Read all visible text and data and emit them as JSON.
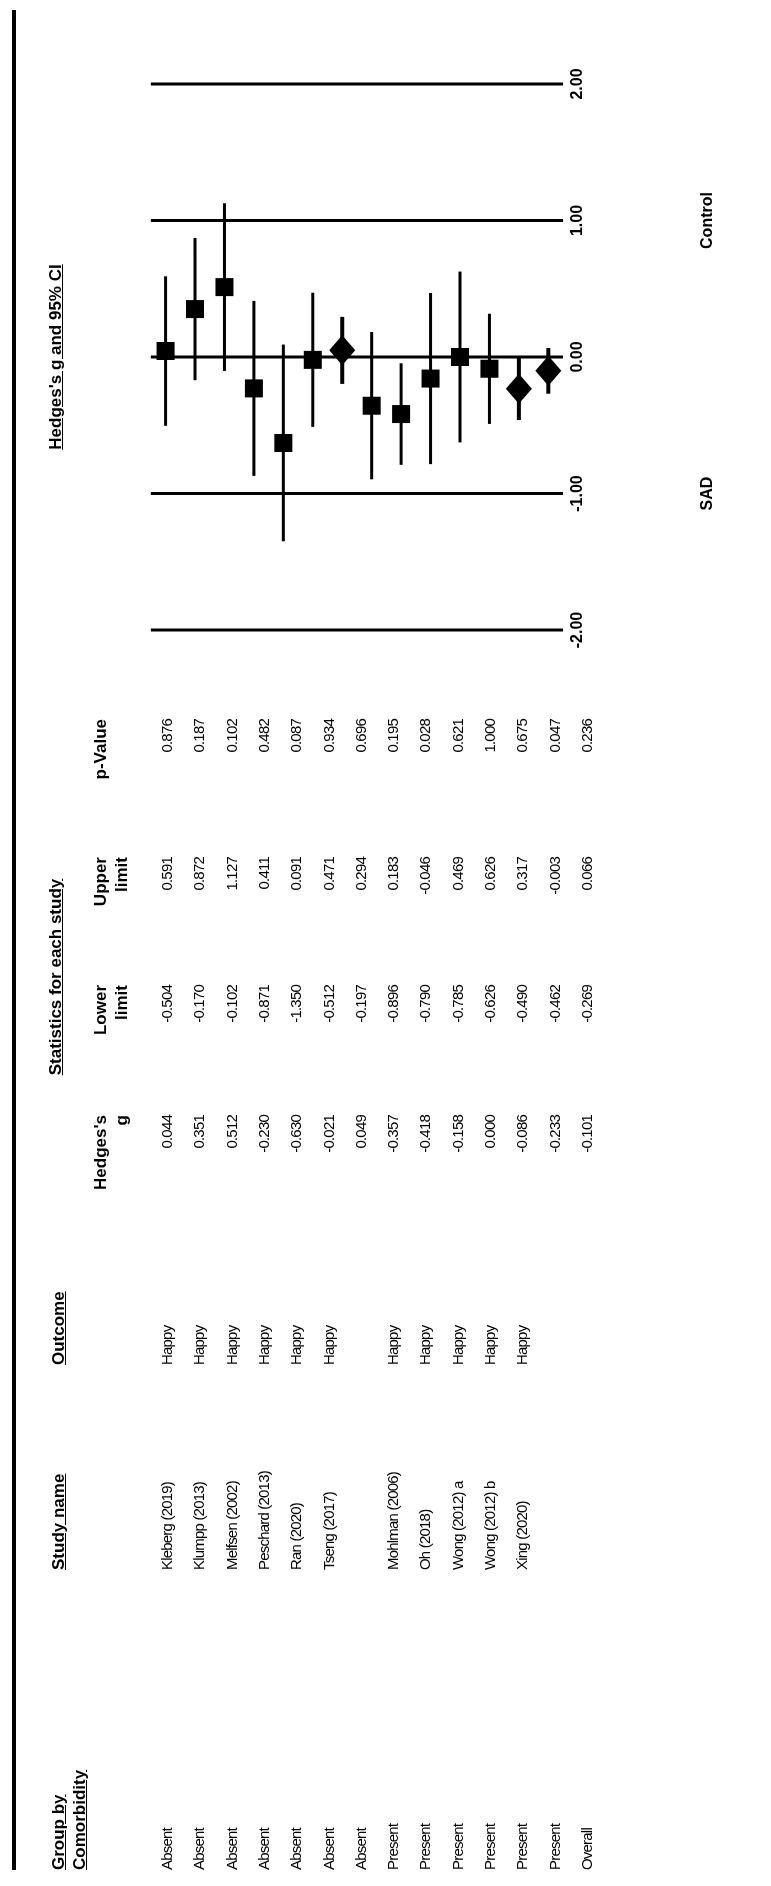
{
  "chart_data": [
    {
      "type": "scatter",
      "title": "Hedges's g and 95% CI",
      "categories": [
        null,
        null,
        null,
        null,
        null,
        null,
        null,
        null,
        null,
        null,
        null,
        null,
        null,
        null
      ],
      "series": [
        {
          "color": "#000000",
          "marker": "square",
          "values": [
            0.044,
            0.351,
            0.512,
            -0.23,
            -0.63,
            -0.021,
            null,
            -0.357,
            -0.418,
            -0.158,
            0.0,
            -0.086,
            null,
            null
          ],
          "errors": [
            [
              -0.504,
              0.591
            ],
            [
              -0.17,
              0.872
            ],
            [
              -0.102,
              1.127
            ],
            [
              -0.871,
              0.411
            ],
            [
              -1.35,
              0.091
            ],
            [
              -0.512,
              0.471
            ],
            null,
            [
              -0.896,
              0.183
            ],
            [
              -0.79,
              -0.046
            ],
            [
              -0.785,
              0.469
            ],
            [
              -0.626,
              0.626
            ],
            [
              -0.49,
              0.317
            ],
            null,
            null
          ]
        },
        {
          "color": "#000000",
          "marker": "diamond",
          "values": [
            null,
            null,
            null,
            null,
            null,
            null,
            0.049,
            null,
            null,
            null,
            null,
            null,
            -0.233,
            -0.101
          ],
          "errors": [
            null,
            null,
            null,
            null,
            null,
            null,
            [
              -0.197,
              0.294
            ],
            null,
            null,
            null,
            null,
            null,
            [
              -0.462,
              -0.003
            ],
            [
              -0.269,
              0.066
            ]
          ]
        }
      ],
      "ylim": [
        -2,
        2
      ],
      "yticks": [
        {
          "value": -2,
          "label": "-2.00"
        },
        {
          "value": -1,
          "label": "-1.00"
        },
        {
          "value": 0,
          "label": "0.00"
        },
        {
          "value": 1,
          "label": "1.00"
        },
        {
          "value": 2,
          "label": "2.00"
        }
      ],
      "grid": "y",
      "legend": false,
      "annotations": [
        "SAD",
        "Control"
      ]
    },
    {
      "type": "other",
      "title": "Statistics for each study",
      "categories": [
        "Group by\nComorbidity",
        "Study name",
        "Outcome",
        "Hedges's\ng",
        "Lower\nlimit",
        "Upper\nlimit",
        "p-Value"
      ],
      "cell_labels": [
        [
          "Absent",
          "Kleberg (2019)",
          "Happy",
          "0.044",
          "-0.504",
          "0.591",
          "0.876"
        ],
        [
          "Absent",
          "Klumpp (2013)",
          "Happy",
          "0.351",
          "-0.170",
          "0.872",
          "0.187"
        ],
        [
          "Absent",
          "Melfsen (2002)",
          "Happy",
          "0.512",
          "-0.102",
          "1.127",
          "0.102"
        ],
        [
          "Absent",
          "Peschard (2013)",
          "Happy",
          "-0.230",
          "-0.871",
          "0.411",
          "0.482"
        ],
        [
          "Absent",
          "Ran (2020)",
          "Happy",
          "-0.630",
          "-1.350",
          "0.091",
          "0.087"
        ],
        [
          "Absent",
          "Tseng (2017)",
          "Happy",
          "-0.021",
          "-0.512",
          "0.471",
          "0.934"
        ],
        [
          "Absent",
          null,
          null,
          "0.049",
          "-0.197",
          "0.294",
          "0.696"
        ],
        [
          "Present",
          "Mohlman (2006)",
          "Happy",
          "-0.357",
          "-0.896",
          "0.183",
          "0.195"
        ],
        [
          "Present",
          "Oh (2018)",
          "Happy",
          "-0.418",
          "-0.790",
          "-0.046",
          "0.028"
        ],
        [
          "Present",
          "Wong (2012) a",
          "Happy",
          "-0.158",
          "-0.785",
          "0.469",
          "0.621"
        ],
        [
          "Present",
          "Wong (2012) b",
          "Happy",
          "0.000",
          "-0.626",
          "0.626",
          "1.000"
        ],
        [
          "Present",
          "Xing (2020)",
          "Happy",
          "-0.086",
          "-0.490",
          "0.317",
          "0.675"
        ],
        [
          "Present",
          null,
          null,
          "-0.233",
          "-0.462",
          "-0.003",
          "0.047"
        ],
        [
          "Overall",
          null,
          null,
          "-0.101",
          "-0.269",
          "0.066",
          "0.236"
        ]
      ]
    }
  ]
}
